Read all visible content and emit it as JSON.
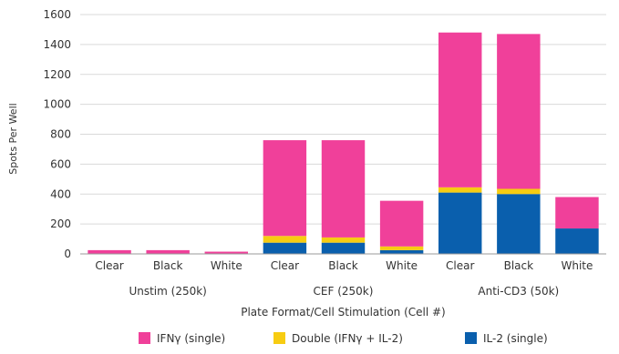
{
  "chart_data": {
    "type": "bar",
    "stacked": true,
    "ylabel": "Spots Per Well",
    "xlabel": "Plate Format/Cell Stimulation (Cell #)",
    "ylim": [
      0,
      1600
    ],
    "yticks": [
      0,
      200,
      400,
      600,
      800,
      1000,
      1200,
      1400,
      1600
    ],
    "grid": true,
    "legend_position": "bottom",
    "groups": [
      {
        "label": "Unstim (250k)",
        "categories": [
          "Clear",
          "Black",
          "White"
        ]
      },
      {
        "label": "CEF (250k)",
        "categories": [
          "Clear",
          "Black",
          "White"
        ]
      },
      {
        "label": "Anti-CD3 (50k)",
        "categories": [
          "Clear",
          "Black",
          "White"
        ]
      }
    ],
    "categories": [
      "Clear",
      "Black",
      "White",
      "Clear",
      "Black",
      "White",
      "Clear",
      "Black",
      "White"
    ],
    "series": [
      {
        "name": "IL-2 (single)",
        "color": "#0a5fad",
        "values": [
          0,
          0,
          0,
          75,
          75,
          25,
          410,
          400,
          170
        ]
      },
      {
        "name": "Double (IFNγ + IL-2)",
        "color": "#f7cc12",
        "values": [
          0,
          0,
          0,
          45,
          35,
          25,
          35,
          35,
          0
        ]
      },
      {
        "name": "IFNγ (single)",
        "color": "#f0409a",
        "values": [
          25,
          25,
          15,
          640,
          650,
          305,
          1035,
          1035,
          210
        ]
      }
    ],
    "legend_order": [
      "IFNγ (single)",
      "Double (IFNγ + IL-2)",
      "IL-2 (single)"
    ]
  }
}
